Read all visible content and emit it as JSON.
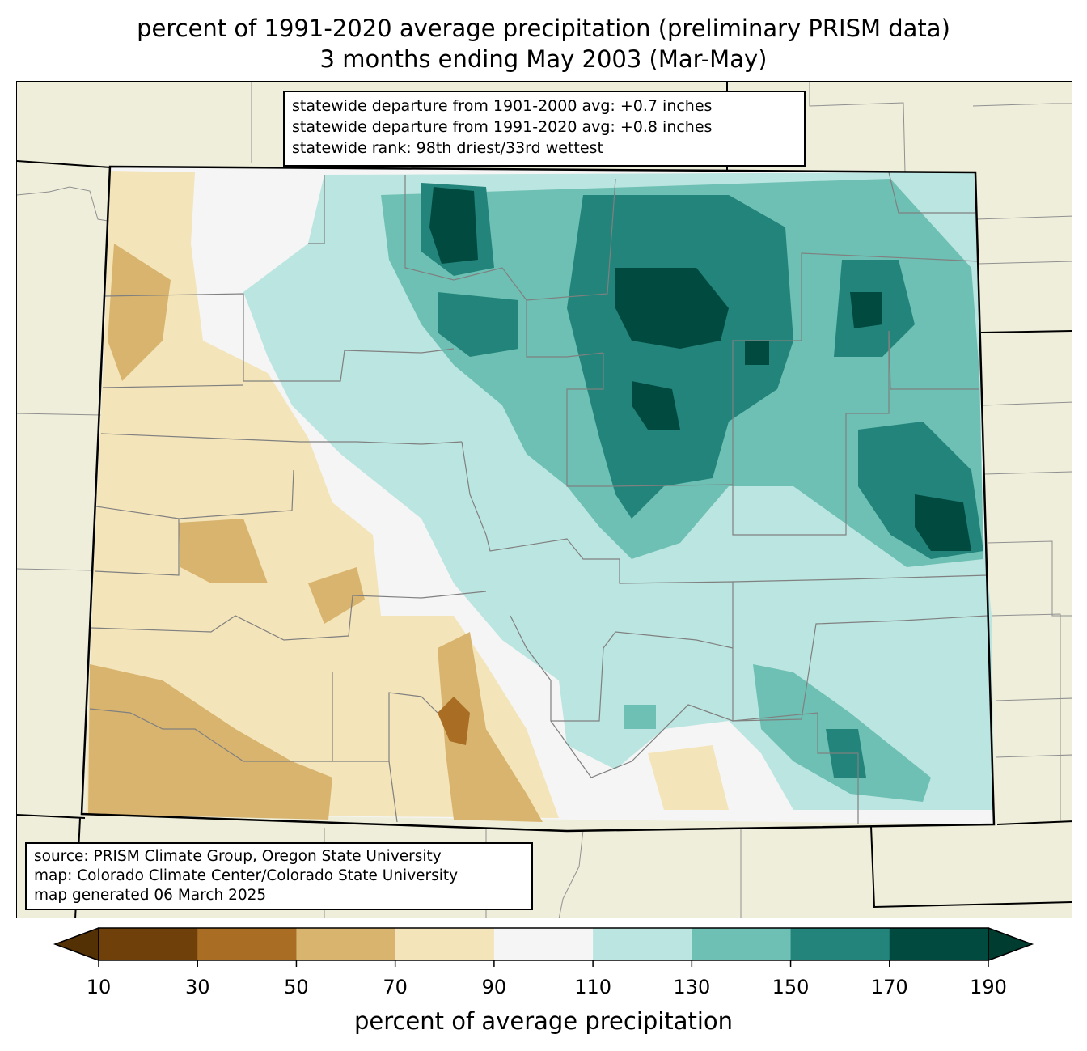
{
  "title": {
    "line1": "percent of 1991-2020 average precipitation (preliminary PRISM data)",
    "line2": "3 months ending May 2003 (Mar-May)"
  },
  "stats": {
    "line1": "statewide departure from 1901-2000 avg: +0.7 inches",
    "line2": "statewide departure from 1991-2020 avg: +0.8 inches",
    "line3": "statewide rank: 98th driest/33rd wettest"
  },
  "source": {
    "line1": "source: PRISM Climate Group, Oregon State University",
    "line2": "map: Colorado Climate Center/Colorado State University",
    "line3": "map generated 06 March 2025"
  },
  "colorbar": {
    "label": "percent of average precipitation",
    "ticks": [
      "10",
      "30",
      "50",
      "70",
      "90",
      "110",
      "130",
      "150",
      "170",
      "190"
    ],
    "colors": [
      "#6f400a",
      "#a96d24",
      "#d8b46e",
      "#f4e4b9",
      "#f4f5f4",
      "#bbe5e0",
      "#6dc0b3",
      "#22847a",
      "#014a3f"
    ],
    "under_color": "#543005",
    "over_color": "#003c30"
  },
  "map_colors": {
    "background": "#efeedb",
    "state_border": "#000000",
    "county_lines": "#808080"
  }
}
